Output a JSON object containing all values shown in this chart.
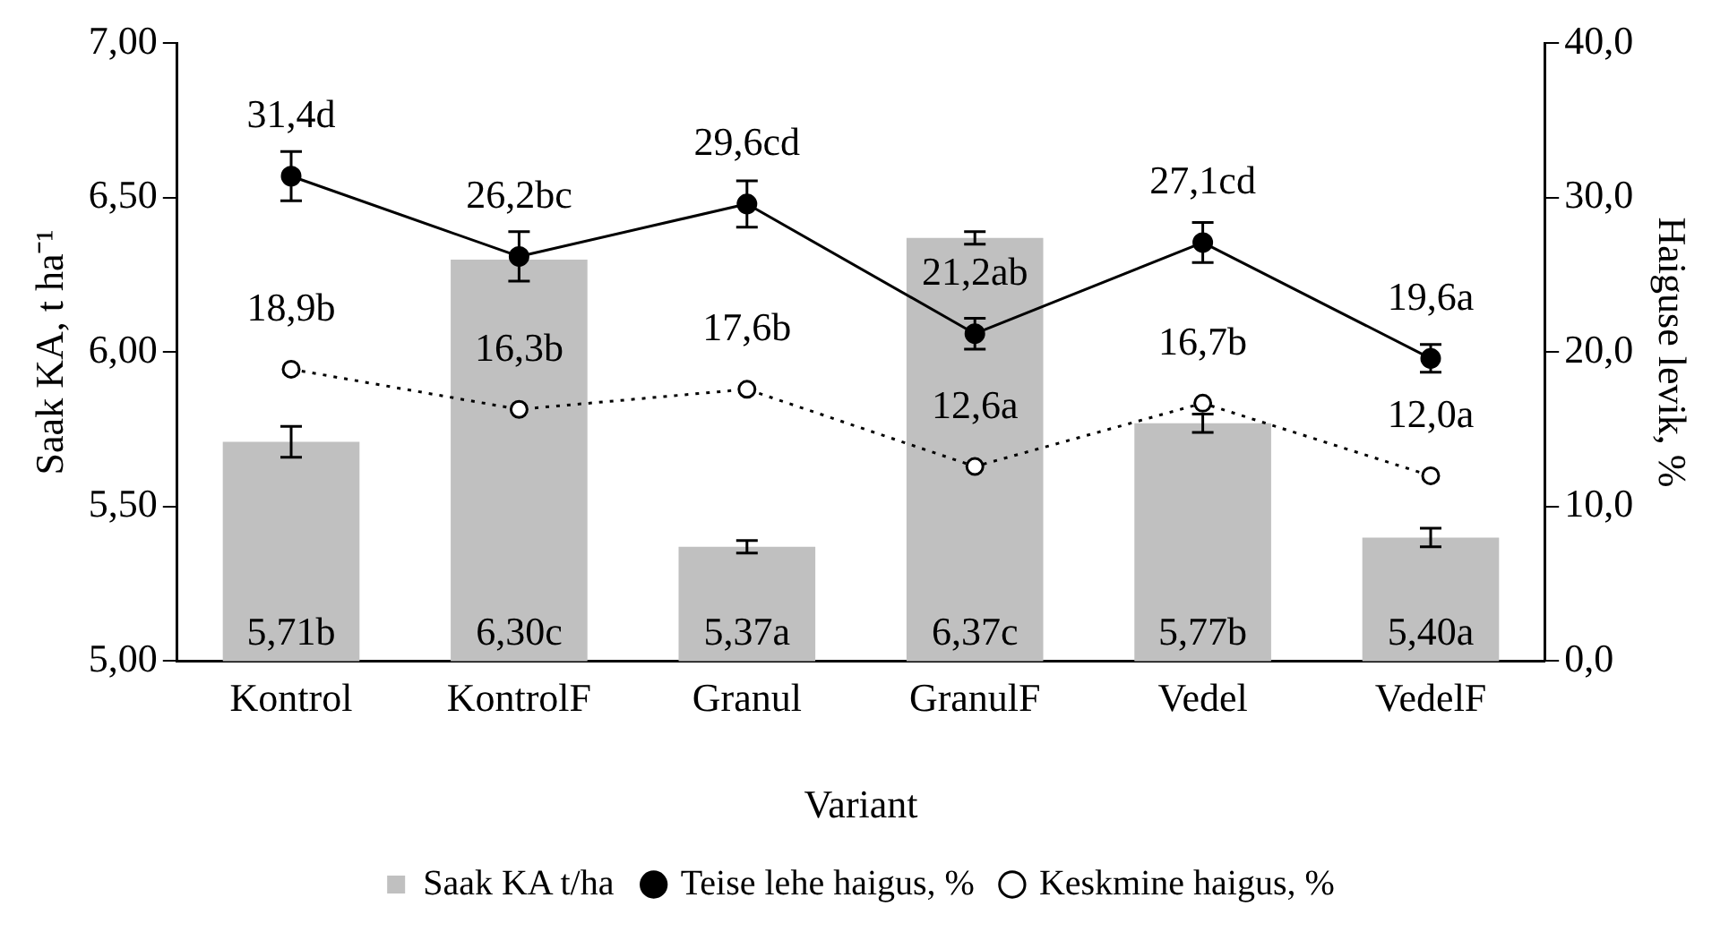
{
  "chart_data": {
    "type": "bar",
    "xlabel": "Variant",
    "ylabel": "Saak KA, t ha⁻¹",
    "y2label": "Haiguse levik, %",
    "categories": [
      "Kontrol",
      "KontrolF",
      "Granul",
      "GranulF",
      "Vedel",
      "VedelF"
    ],
    "series": [
      {
        "name": "Saak KA t/ha",
        "color": "#c0c0c0",
        "values": [
          5.71,
          6.3,
          5.37,
          6.37,
          5.77,
          5.4
        ],
        "errors": [
          0.05,
          null,
          0.02,
          0.02,
          0.03,
          0.03
        ],
        "value_labels": [
          "5,71b",
          "6,30c",
          "5,37a",
          "6,37c",
          "5,77b",
          "5,40a"
        ]
      },
      {
        "name": "Teise lehe haigus, %",
        "type": "line",
        "axis": "y2",
        "color": "#000000",
        "marker": "circle",
        "line_style": "solid",
        "values": [
          31.4,
          26.2,
          29.6,
          21.2,
          27.1,
          19.6
        ],
        "errors": [
          1.6,
          1.6,
          1.5,
          1.0,
          1.3,
          0.9
        ],
        "value_labels": [
          "31,4d",
          "26,2bc",
          "29,6cd",
          "21,2ab",
          "27,1cd",
          "19,6a"
        ]
      },
      {
        "name": "Keskmine haigus, %",
        "type": "line",
        "axis": "y2",
        "color": "#000000",
        "marker": "circle",
        "line_style": "dotted",
        "values": [
          18.9,
          16.3,
          17.6,
          12.6,
          16.7,
          12.0
        ],
        "value_labels": [
          "18,9b",
          "16,3b",
          "17,6b",
          "12,6a",
          "16,7b",
          "12,0a"
        ]
      }
    ],
    "ylim": [
      5,
      7
    ],
    "yticks": [
      {
        "value": 5,
        "label": "5,00"
      },
      {
        "value": 5.5,
        "label": "5,50"
      },
      {
        "value": 6,
        "label": "6,00"
      },
      {
        "value": 6.5,
        "label": "6,50"
      },
      {
        "value": 7,
        "label": "7,00"
      }
    ],
    "y2lim": [
      0,
      40
    ],
    "y2ticks": [
      {
        "value": 0,
        "label": "0,0"
      },
      {
        "value": 10,
        "label": "10,0"
      },
      {
        "value": 20,
        "label": "20,0"
      },
      {
        "value": 30,
        "label": "30,0"
      },
      {
        "value": 40,
        "label": "40,0"
      }
    ],
    "grid": false,
    "legend": "bottom"
  }
}
